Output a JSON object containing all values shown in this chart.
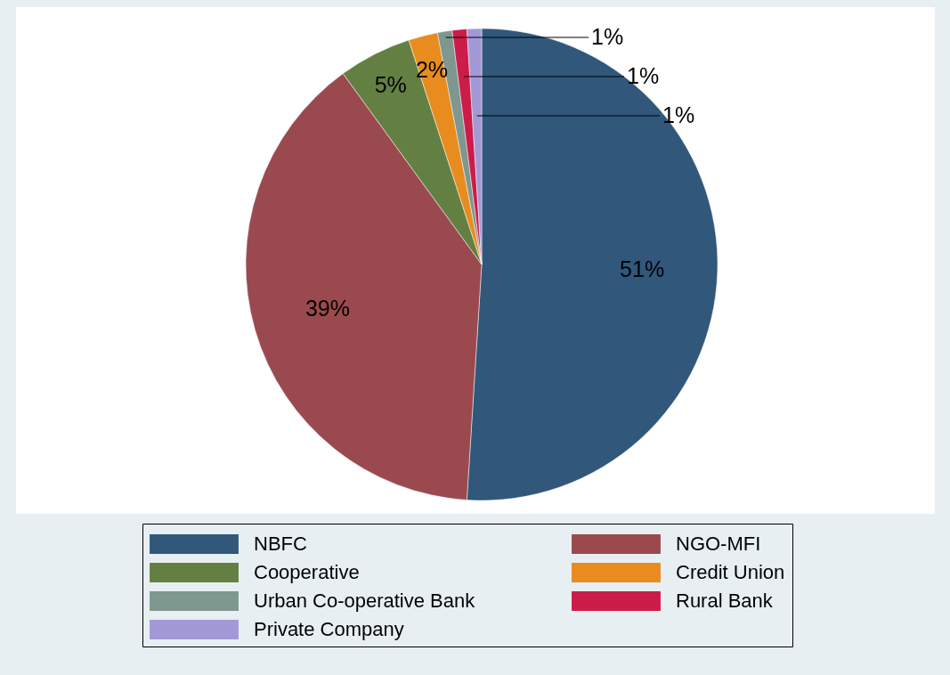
{
  "chart_data": {
    "type": "pie",
    "categories": [
      "NBFC",
      "NGO-MFI",
      "Cooperative",
      "Credit Union",
      "Urban Co-operative Bank",
      "Rural Bank",
      "Private Company"
    ],
    "values": [
      51,
      39,
      5,
      2,
      1,
      1,
      1
    ],
    "colors": [
      "#31577b",
      "#9a4a4f",
      "#647f42",
      "#e88c1f",
      "#7e978f",
      "#cc1c4a",
      "#a399d6"
    ],
    "value_labels": [
      "51%",
      "39%",
      "5%",
      "2%",
      "1%",
      "1%",
      "1%"
    ],
    "legend": "bottom"
  }
}
